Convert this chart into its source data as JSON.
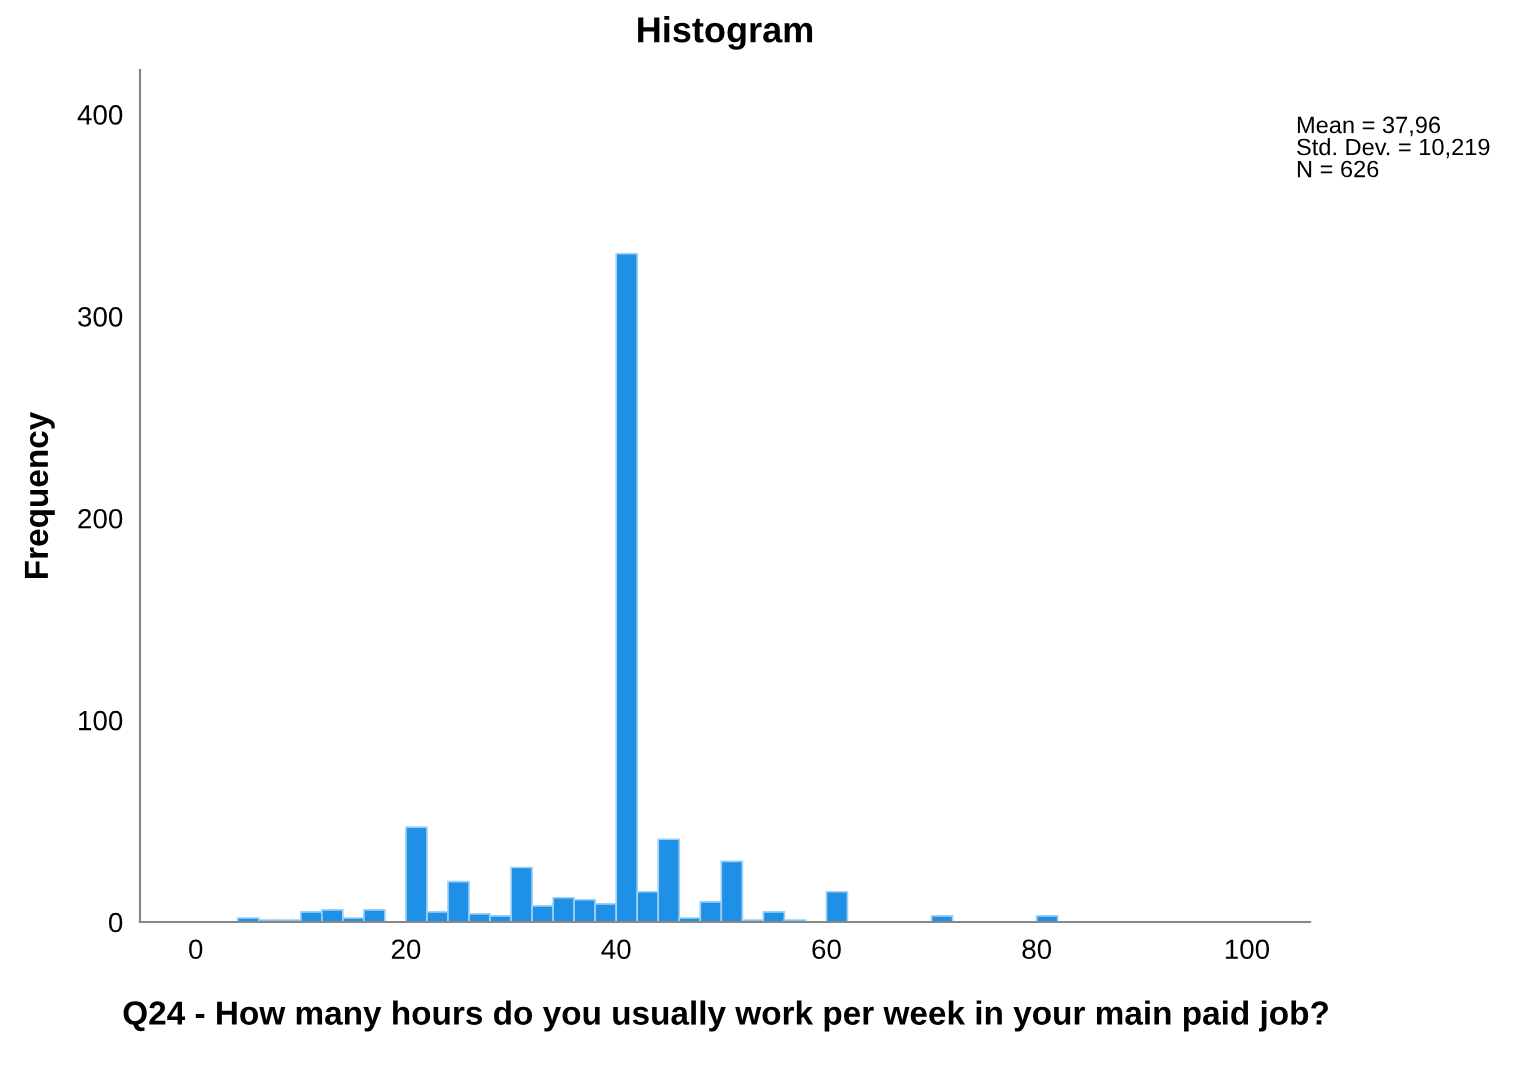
{
  "chart_data": {
    "type": "histogram",
    "title": "Histogram",
    "xlabel": "Q24 - How many hours do you usually work per week in your main paid job?",
    "ylabel": "Frequency",
    "bins": [
      4,
      6,
      8,
      10,
      12,
      14,
      16,
      18,
      20,
      22,
      24,
      26,
      28,
      30,
      32,
      34,
      36,
      38,
      40,
      42,
      44,
      46,
      48,
      50,
      52,
      54,
      56,
      58,
      60,
      62,
      64,
      66,
      68,
      70,
      72,
      74,
      76,
      78,
      80,
      82
    ],
    "values": [
      2,
      1,
      1,
      5,
      6,
      2,
      6,
      0,
      47,
      5,
      20,
      4,
      3,
      27,
      8,
      12,
      11,
      9,
      331,
      15,
      41,
      2,
      10,
      30,
      1,
      5,
      1,
      0,
      15,
      0,
      0,
      0,
      0,
      3,
      0,
      0,
      0,
      0,
      3
    ],
    "color": "#1e90e6",
    "xlim": [
      -5.3,
      106
    ],
    "xticks": [
      0,
      20,
      40,
      60,
      80,
      100
    ],
    "ylim": [
      0,
      422
    ],
    "yticks": [
      0,
      100,
      200,
      300,
      400
    ],
    "grid": false,
    "annotations": [
      "Mean = 37,96\nStd. Dev. = 10,219\nN = 626"
    ]
  }
}
